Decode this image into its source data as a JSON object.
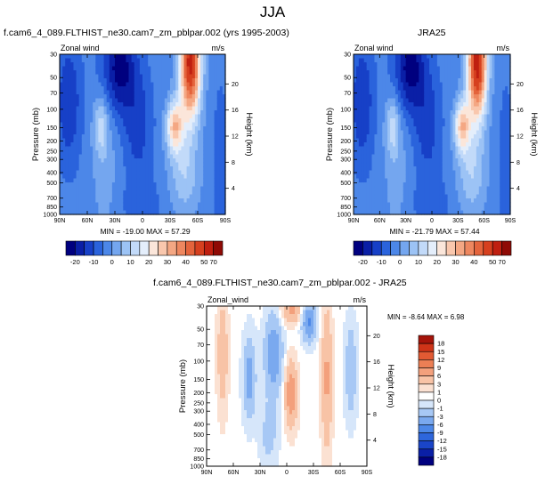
{
  "figure": {
    "title": "JJA"
  },
  "chart_data": [
    {
      "type": "contour",
      "title": "f.cam6_4_089.FLTHIST_ne30.cam7_zm_pblpar.002 (yrs 1995-2003)",
      "left_string": "Zonal wind",
      "right_string": "m/s",
      "xlabel": "",
      "ylabel": "Pressure (mb)",
      "ylabel_right": "Height (km)",
      "x_ticks": [
        "90N",
        "60N",
        "30N",
        "0",
        "30S",
        "60S",
        "90S"
      ],
      "y_ticks": [
        "30",
        "50",
        "70",
        "100",
        "150",
        "200",
        "250",
        "300",
        "400",
        "500",
        "700",
        "850",
        "1000"
      ],
      "y_right_ticks": [
        "20",
        "16",
        "12",
        "8",
        "4"
      ],
      "xlim": [
        90,
        -90
      ],
      "ylim": [
        1000,
        30
      ],
      "stats": {
        "min_label": "MIN = -19.00",
        "max_label": "MAX =  57.29",
        "min": -19.0,
        "max": 57.29
      },
      "colorbar_labels": [
        "-20",
        "-10",
        "0",
        "10",
        "20",
        "30",
        "40",
        "50",
        "70"
      ]
    },
    {
      "type": "contour",
      "title": "JRA25",
      "left_string": "Zonal wind",
      "right_string": "m/s",
      "xlabel": "",
      "ylabel": "Pressure (mb)",
      "ylabel_right": "Height (km)",
      "x_ticks": [
        "90N",
        "60N",
        "30N",
        "0",
        "30S",
        "60S",
        "90S"
      ],
      "y_ticks": [
        "30",
        "50",
        "70",
        "100",
        "150",
        "200",
        "250",
        "300",
        "400",
        "500",
        "700",
        "850",
        "1000"
      ],
      "y_right_ticks": [
        "20",
        "16",
        "12",
        "8",
        "4"
      ],
      "xlim": [
        90,
        -90
      ],
      "ylim": [
        1000,
        30
      ],
      "stats": {
        "min_label": "MIN = -21.79",
        "max_label": "MAX =  57.44",
        "min": -21.79,
        "max": 57.44
      },
      "colorbar_labels": [
        "-20",
        "-10",
        "0",
        "10",
        "20",
        "30",
        "40",
        "50",
        "70"
      ]
    },
    {
      "type": "contour",
      "title": "f.cam6_4_089.FLTHIST_ne30.cam7_zm_pblpar.002 - JRA25",
      "left_string": "Zonal_wind",
      "right_string": "m/s",
      "xlabel": "",
      "ylabel": "Pressure (mb)",
      "ylabel_right": "Height (km)",
      "x_ticks": [
        "90N",
        "60N",
        "30N",
        "0",
        "30S",
        "60S",
        "90S"
      ],
      "y_ticks": [
        "30",
        "50",
        "70",
        "100",
        "150",
        "200",
        "250",
        "300",
        "400",
        "500",
        "700",
        "850",
        "1000"
      ],
      "y_right_ticks": [
        "20",
        "16",
        "12",
        "8",
        "4"
      ],
      "xlim": [
        90,
        -90
      ],
      "ylim": [
        1000,
        30
      ],
      "stats": {
        "min_label": "MIN =  -8.64",
        "max_label": "MAX =   6.98",
        "min": -8.64,
        "max": 6.98
      },
      "colorbar_labels": [
        "18",
        "15",
        "12",
        "9",
        "6",
        "3",
        "1",
        "0",
        "-1",
        "-3",
        "-6",
        "-9",
        "-12",
        "-15",
        "-18"
      ]
    }
  ],
  "colors": {
    "abs_scale": [
      "#00007f",
      "#0a1fa6",
      "#1740c7",
      "#2a63dc",
      "#4c87e8",
      "#74a6ef",
      "#9cc3f5",
      "#c2daf9",
      "#e4eefb",
      "#fbe6da",
      "#f9c7ad",
      "#f4a783",
      "#ee875f",
      "#e4643c",
      "#d6401f",
      "#bf1f10",
      "#8f0a05"
    ],
    "diff_scale": [
      "#00007f",
      "#0a1fa6",
      "#1a45c8",
      "#2e66dc",
      "#4d88e8",
      "#7aa9ef",
      "#a7c8f5",
      "#d6e6fa",
      "#ffffff",
      "#fbe1d2",
      "#f8c3a6",
      "#f3a07c",
      "#ec7f55",
      "#e25a33",
      "#cf3418",
      "#a5140a"
    ]
  }
}
